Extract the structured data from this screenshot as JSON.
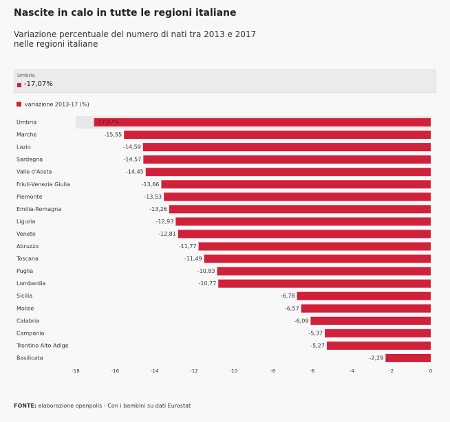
{
  "chart_data": {
    "type": "bar",
    "orientation": "horizontal",
    "title": "Nascite in calo in tutte le regioni italiane",
    "subtitle": "Variazione percentuale del numero di nati tra 2013 e 2017 nelle regioni italiane",
    "tooltip": {
      "label": "Umbria",
      "value": "-17,07%"
    },
    "source_label": "FONTE:",
    "source": "elaborazione openpolis - Con i bambini su dati Eurostat",
    "categories": [
      "Umbria",
      "Marche",
      "Lazio",
      "Sardegna",
      "Valle d'Aosta",
      "Friuli-Venezia Giulia",
      "Piemonte",
      "Emilia-Romagna",
      "Liguria",
      "Veneto",
      "Abruzzo",
      "Toscana",
      "Puglia",
      "Lombardia",
      "Sicilia",
      "Molise",
      "Calabria",
      "Campania",
      "Trentino Alto Adige",
      "Basilicata"
    ],
    "series": [
      {
        "name": "variazione 2013-17 (%)",
        "color": "#d1213a",
        "values": [
          -17.07,
          -15.55,
          -14.59,
          -14.57,
          -14.45,
          -13.66,
          -13.53,
          -13.26,
          -12.93,
          -12.81,
          -11.77,
          -11.49,
          -10.83,
          -10.77,
          -6.78,
          -6.57,
          -6.09,
          -5.37,
          -5.27,
          -2.29
        ],
        "value_labels": [
          "-17,07%",
          "-15,55",
          "-14,59",
          "-14,57",
          "-14,45",
          "-13,66",
          "-13,53",
          "-13,26",
          "-12,93",
          "-12,81",
          "-11,77",
          "-11,49",
          "-10,83",
          "-10,77",
          "-6,78",
          "-6,57",
          "-6,09",
          "-5,37",
          "-5,27",
          "-2,29"
        ]
      }
    ],
    "highlight_index": 0,
    "xlim": [
      -18,
      0
    ],
    "xticks": [
      -18,
      -16,
      -14,
      -12,
      -10,
      -8,
      -6,
      -4,
      -2,
      0
    ],
    "legend": "top-left"
  }
}
